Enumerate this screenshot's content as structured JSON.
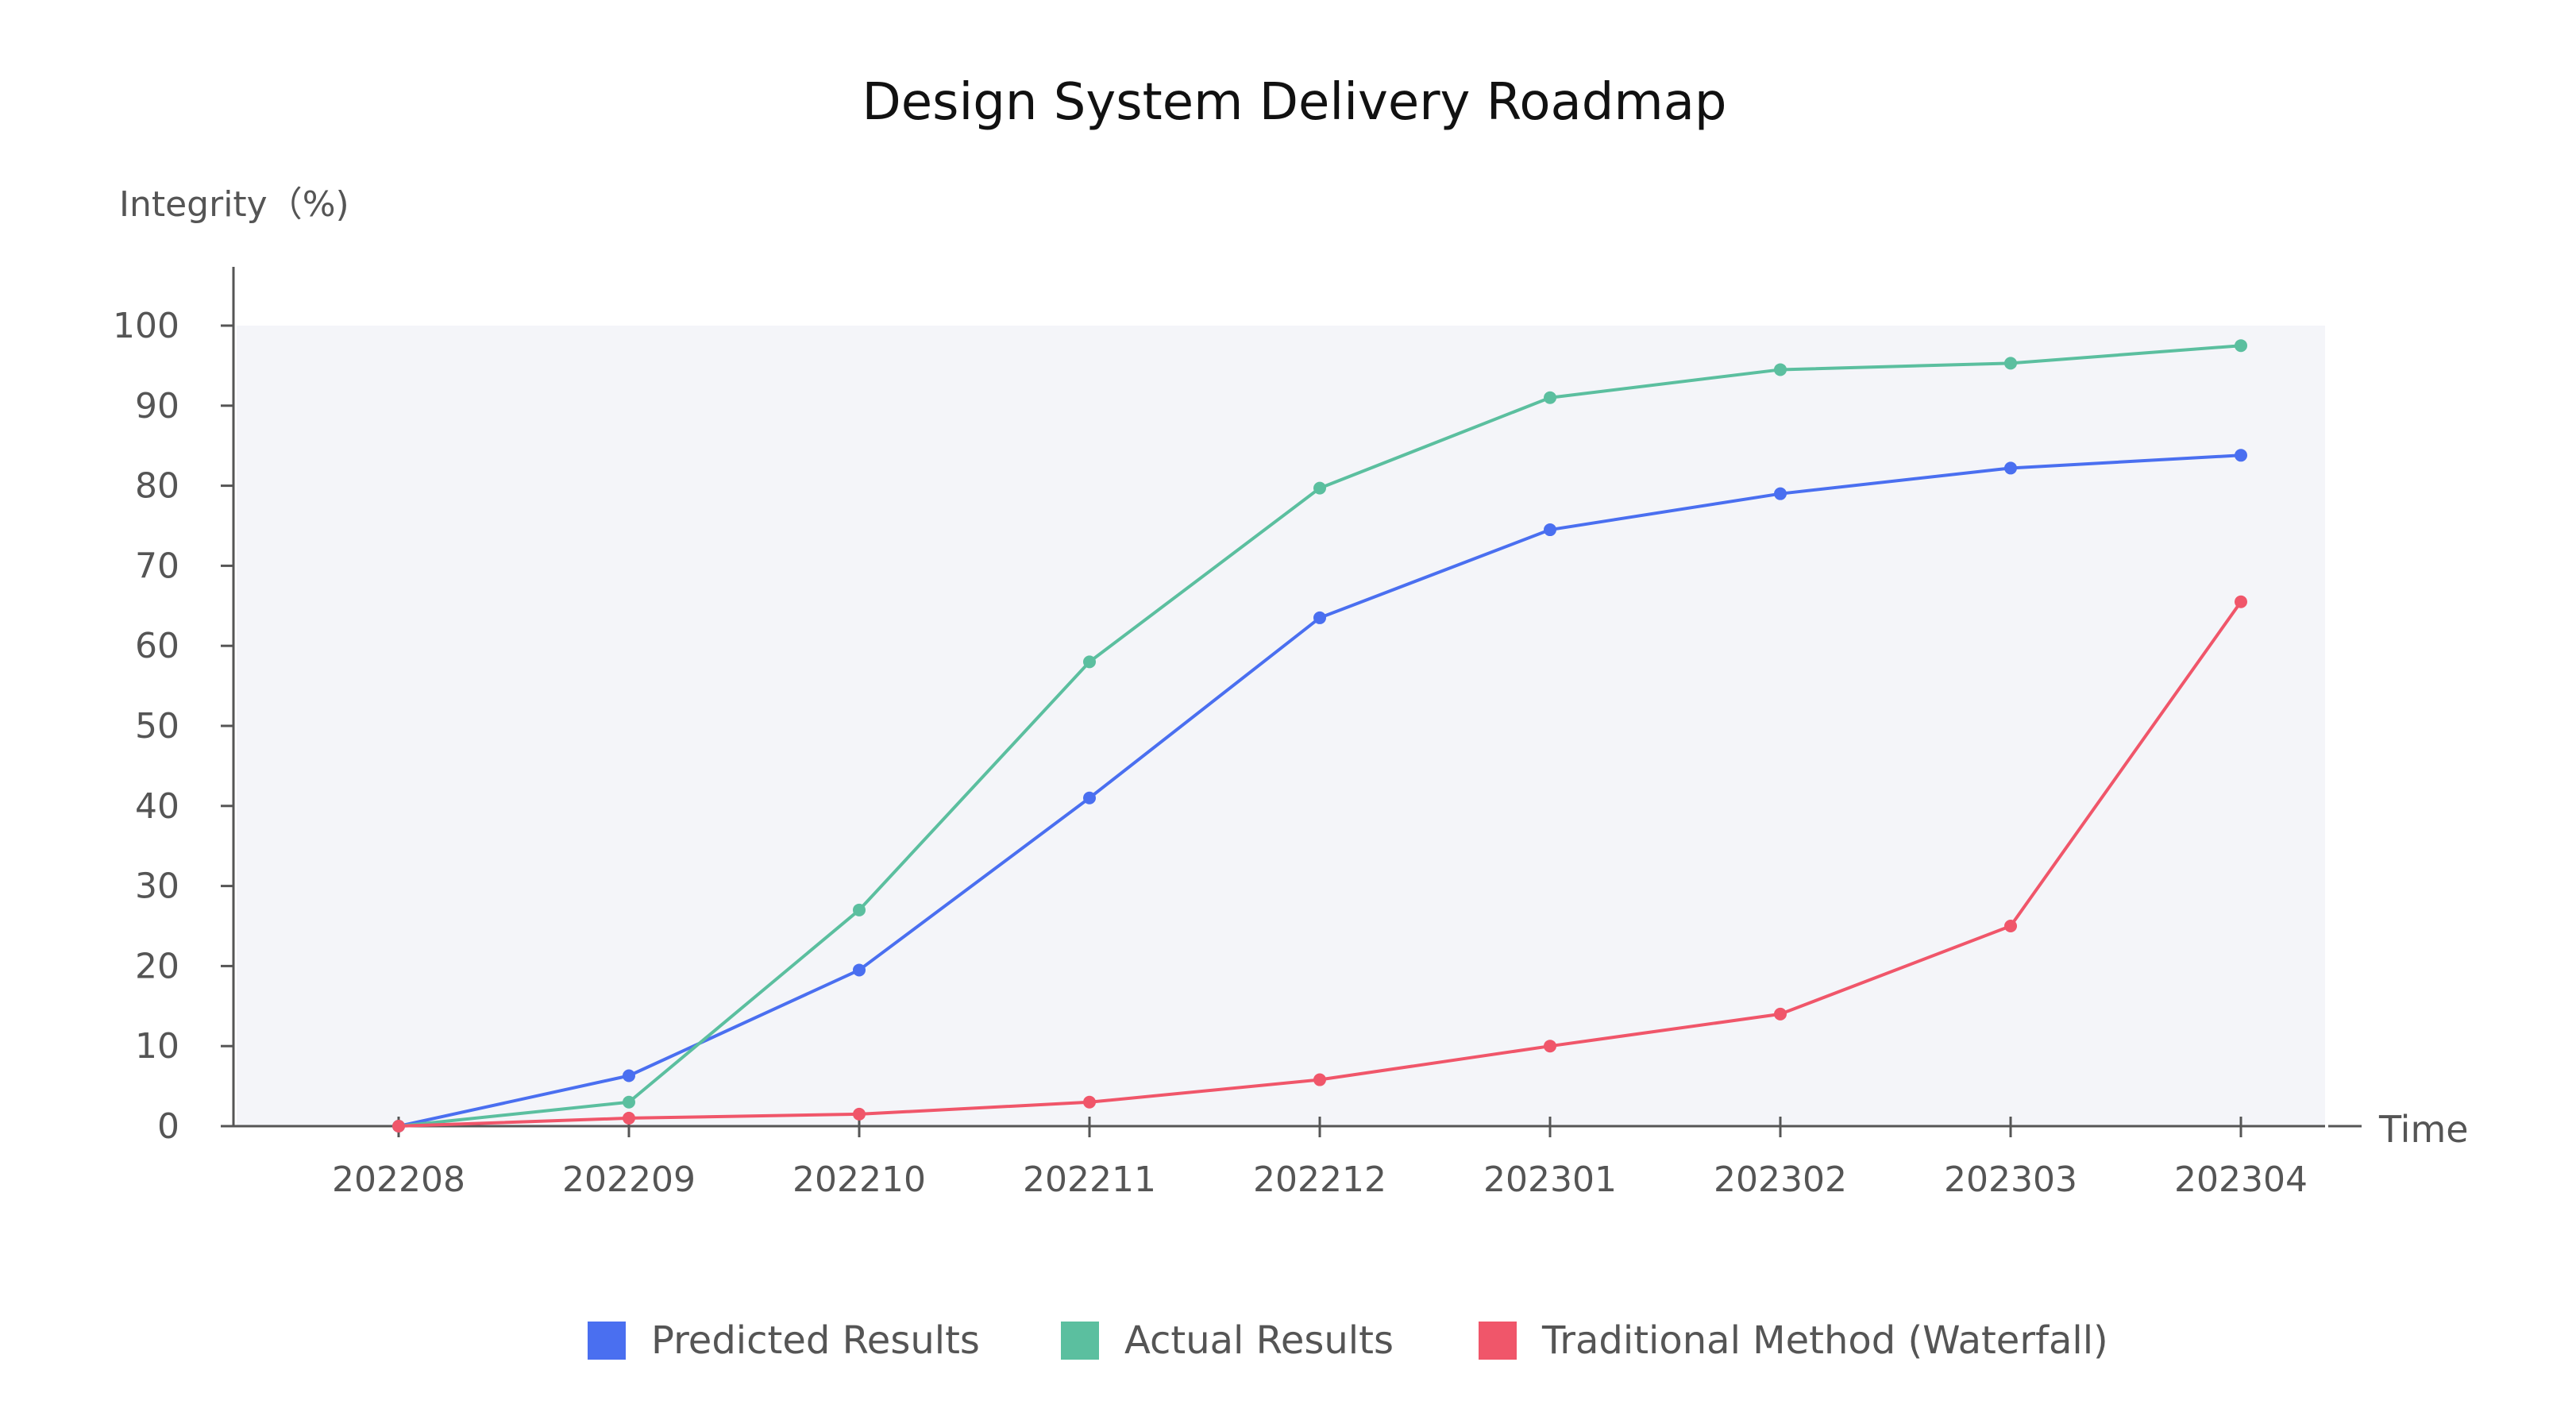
{
  "chart_data": {
    "type": "line",
    "title": "Design System Delivery Roadmap",
    "ylabel": "Integrity（%)",
    "xlabel": "Time",
    "categories": [
      "202208",
      "202209",
      "202210",
      "202211",
      "202212",
      "202301",
      "202302",
      "202303",
      "202304"
    ],
    "ylim": [
      0,
      100
    ],
    "yticks": [
      "0",
      "10",
      "20",
      "30",
      "40",
      "50",
      "60",
      "70",
      "80",
      "90",
      "100"
    ],
    "legend_position": "bottom",
    "series": [
      {
        "name": "Predicted Results",
        "color": "#4a6ff0",
        "values": [
          0,
          6.3,
          19.5,
          41,
          63.5,
          74.5,
          79,
          82.2,
          83.8
        ]
      },
      {
        "name": "Actual Results",
        "color": "#5bbf9f",
        "values": [
          0,
          3,
          27,
          58,
          79.7,
          91,
          94.5,
          95.3,
          97.5
        ]
      },
      {
        "name": "Traditional Method (Waterfall)",
        "color": "#f0566a",
        "values": [
          0,
          1,
          1.5,
          3,
          5.8,
          10,
          14,
          25,
          65.5
        ]
      }
    ]
  }
}
